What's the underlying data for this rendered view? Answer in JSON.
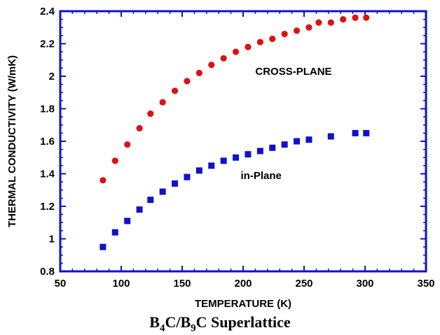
{
  "chart_data": {
    "type": "scatter",
    "xlabel": "TEMPERATURE (K)",
    "ylabel": "THERMAL CONDUCTIVITY (W/mK)",
    "xlim": [
      50,
      350
    ],
    "ylim": [
      0.8,
      2.4
    ],
    "x_ticks": [
      50,
      100,
      150,
      200,
      250,
      300,
      350
    ],
    "y_ticks": [
      0.8,
      1,
      1.2,
      1.4,
      1.6,
      1.8,
      2,
      2.2,
      2.4
    ],
    "x_tick_labels": [
      "50",
      "100",
      "150",
      "200",
      "250",
      "300",
      "350"
    ],
    "y_tick_labels": [
      "0.8",
      "1",
      "1.2",
      "1.4",
      "1.6",
      "1.8",
      "2",
      "2.2",
      "2.4"
    ],
    "grid": false,
    "series": [
      {
        "name": "CROSS-PLANE",
        "marker": "circle",
        "color": "#dd1111",
        "x": [
          85,
          95,
          105,
          115,
          124,
          134,
          144,
          154,
          164,
          174,
          184,
          194,
          204,
          214,
          224,
          234,
          244,
          254,
          262,
          272,
          282,
          292,
          301
        ],
        "y": [
          1.36,
          1.48,
          1.58,
          1.68,
          1.77,
          1.84,
          1.91,
          1.97,
          2.02,
          2.07,
          2.11,
          2.15,
          2.18,
          2.21,
          2.23,
          2.26,
          2.28,
          2.3,
          2.33,
          2.33,
          2.35,
          2.36,
          2.36
        ]
      },
      {
        "name": "in-Plane",
        "marker": "square",
        "color": "#1111cc",
        "x": [
          85,
          95,
          105,
          115,
          124,
          134,
          144,
          154,
          164,
          174,
          184,
          194,
          204,
          214,
          224,
          234,
          244,
          254,
          272,
          292,
          301
        ],
        "y": [
          0.95,
          1.04,
          1.11,
          1.18,
          1.24,
          1.29,
          1.34,
          1.38,
          1.42,
          1.45,
          1.48,
          1.5,
          1.52,
          1.54,
          1.56,
          1.58,
          1.6,
          1.61,
          1.63,
          1.65,
          1.65
        ]
      }
    ]
  },
  "caption": {
    "part1": "B",
    "sub1": "4",
    "part2": "C/B",
    "sub2": "9",
    "part3": "C Superlattice"
  }
}
